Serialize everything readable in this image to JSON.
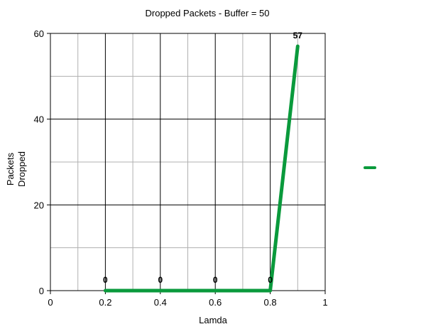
{
  "chart_data": {
    "type": "line",
    "title": "Dropped Packets -  Buffer = 50",
    "xlabel": "Lamda",
    "ylabel": [
      "Packets",
      "Dropped"
    ],
    "xlim": [
      0,
      1
    ],
    "ylim": [
      0,
      60
    ],
    "x_ticks": [
      "0",
      "0.2",
      "0.4",
      "0.6",
      "0.8",
      "1"
    ],
    "y_ticks": [
      "0",
      "20",
      "40",
      "60"
    ],
    "x_tick_values": [
      0,
      0.2,
      0.4,
      0.6,
      0.8,
      1
    ],
    "y_tick_values": [
      0,
      20,
      40,
      60
    ],
    "x_minor_gridlines": [
      0.1,
      0.3,
      0.5,
      0.7,
      0.9
    ],
    "y_minor_gridlines": [
      10,
      30,
      50
    ],
    "grid": true,
    "legend_position": "right",
    "series": [
      {
        "color": "#0a9a3c",
        "x": [
          0.2,
          0.4,
          0.6,
          0.8,
          0.9
        ],
        "values": [
          0,
          0,
          0,
          0,
          57
        ],
        "data_labels": [
          "0",
          "0",
          "0",
          "0",
          "57"
        ]
      }
    ]
  }
}
